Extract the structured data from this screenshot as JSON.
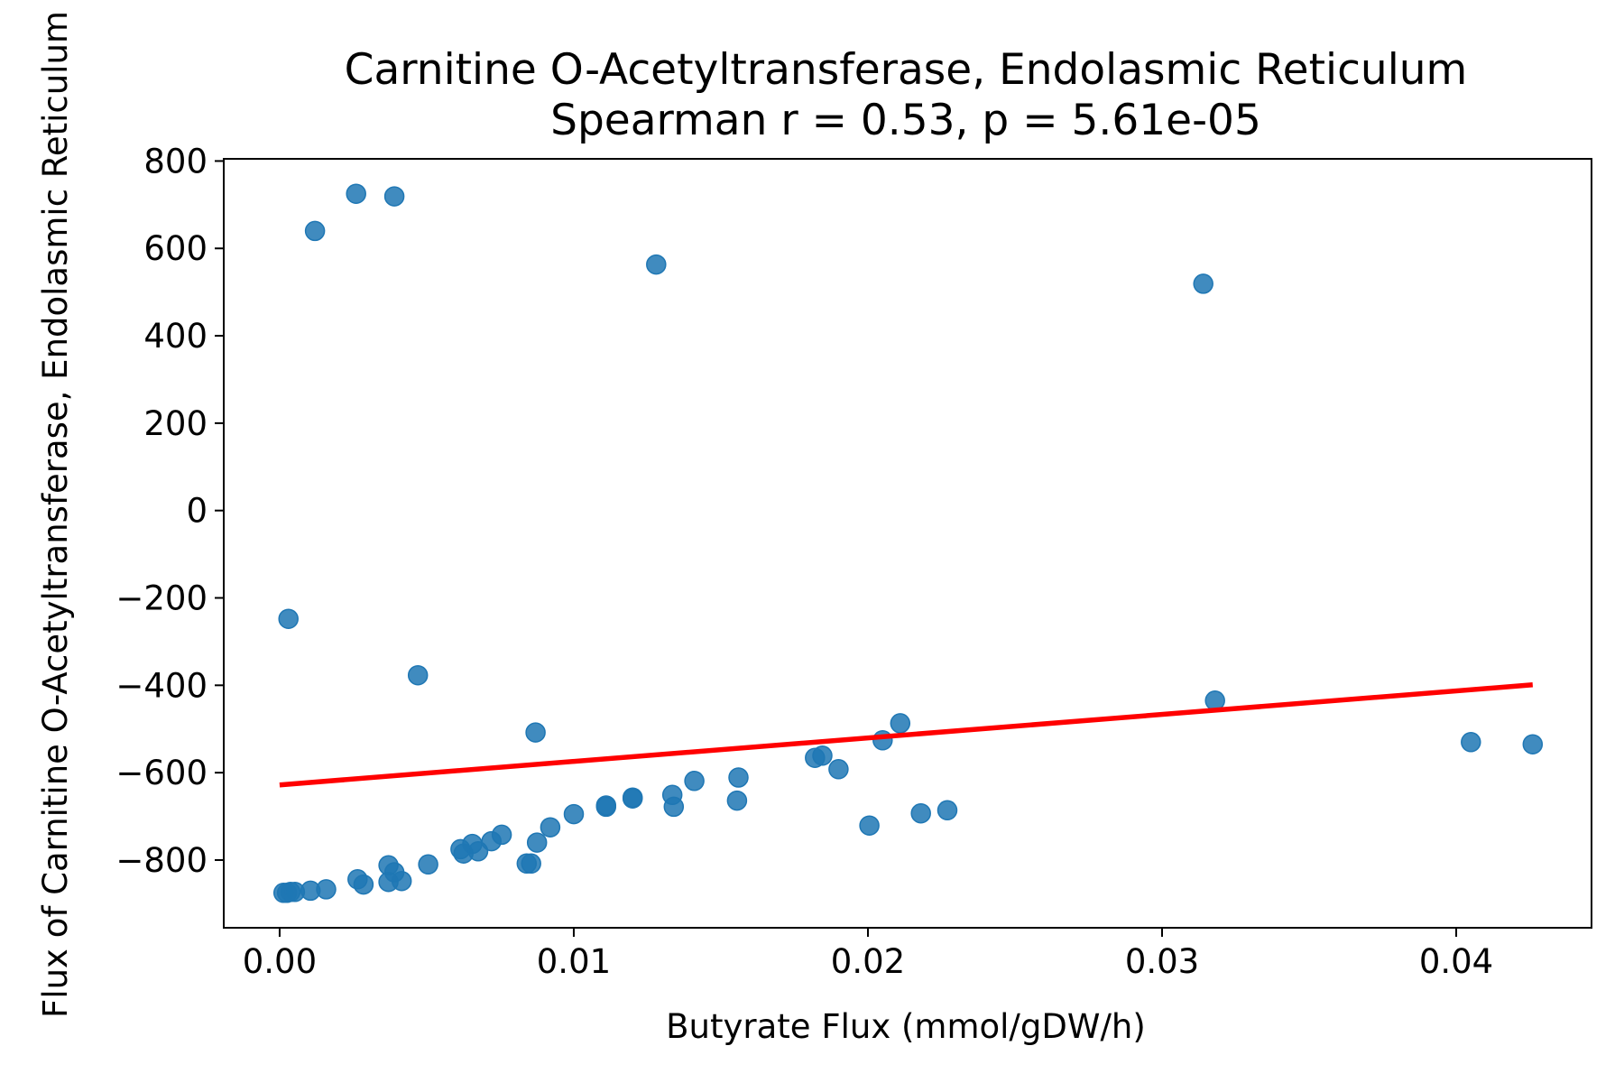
{
  "chart_data": {
    "type": "scatter",
    "title": "Carnitine O-Acetyltransferase, Endolasmic Reticulum",
    "subtitle": "Spearman r = 0.53, p = 5.61e-05",
    "xlabel": "Butyrate Flux (mmol/gDW/h)",
    "ylabel": "Flux of Carnitine O-Acetyltransferase, Endolasmic Reticulum",
    "xlim": [
      -0.0019,
      0.0446
    ],
    "ylim": [
      -955,
      805
    ],
    "xticks": [
      0.0,
      0.01,
      0.02,
      0.03,
      0.04
    ],
    "xtick_labels": [
      "0.00",
      "0.01",
      "0.02",
      "0.03",
      "0.04"
    ],
    "yticks": [
      800,
      600,
      400,
      200,
      0,
      -200,
      -400,
      -600,
      -800
    ],
    "ytick_labels": [
      "800",
      "600",
      "400",
      "200",
      "0",
      "−200",
      "−400",
      "−600",
      "−800"
    ],
    "grid": false,
    "point_color": "#1f77b4",
    "line_color": "#ff0000",
    "points": [
      [
        0.00013,
        -875
      ],
      [
        0.00025,
        -875
      ],
      [
        0.00037,
        -873
      ],
      [
        0.00052,
        -873
      ],
      [
        0.00105,
        -870
      ],
      [
        0.00158,
        -867
      ],
      [
        0.00265,
        -844
      ],
      [
        0.00285,
        -856
      ],
      [
        0.0037,
        -812
      ],
      [
        0.0037,
        -850
      ],
      [
        0.0039,
        -828
      ],
      [
        0.00415,
        -848
      ],
      [
        0.00505,
        -810
      ],
      [
        0.00615,
        -775
      ],
      [
        0.00625,
        -785
      ],
      [
        0.00655,
        -763
      ],
      [
        0.00675,
        -780
      ],
      [
        0.0072,
        -757
      ],
      [
        0.00755,
        -742
      ],
      [
        0.0084,
        -808
      ],
      [
        0.00855,
        -808
      ],
      [
        0.00875,
        -760
      ],
      [
        0.0092,
        -725
      ],
      [
        0.01,
        -695
      ],
      [
        0.0111,
        -678
      ],
      [
        0.0111,
        -675
      ],
      [
        0.012,
        -659
      ],
      [
        0.012,
        -657
      ],
      [
        0.01335,
        -651
      ],
      [
        0.0134,
        -678
      ],
      [
        0.0141,
        -619
      ],
      [
        0.0156,
        -611
      ],
      [
        0.01555,
        -664
      ],
      [
        0.0182,
        -566
      ],
      [
        0.01845,
        -561
      ],
      [
        0.019,
        -592
      ],
      [
        0.02005,
        -721
      ],
      [
        0.0205,
        -526
      ],
      [
        0.0211,
        -487
      ],
      [
        0.0218,
        -693
      ],
      [
        0.0227,
        -686
      ],
      [
        0.0003,
        -248
      ],
      [
        0.0047,
        -377
      ],
      [
        0.0087,
        -508
      ],
      [
        0.0012,
        640
      ],
      [
        0.0026,
        725
      ],
      [
        0.0039,
        719
      ],
      [
        0.0128,
        563
      ],
      [
        0.0314,
        519
      ],
      [
        0.0318,
        -435
      ],
      [
        0.0405,
        -530
      ],
      [
        0.0426,
        -535
      ]
    ],
    "fit_line": {
      "x": [
        0.0,
        0.0426
      ],
      "y": [
        -628,
        -399
      ]
    }
  }
}
